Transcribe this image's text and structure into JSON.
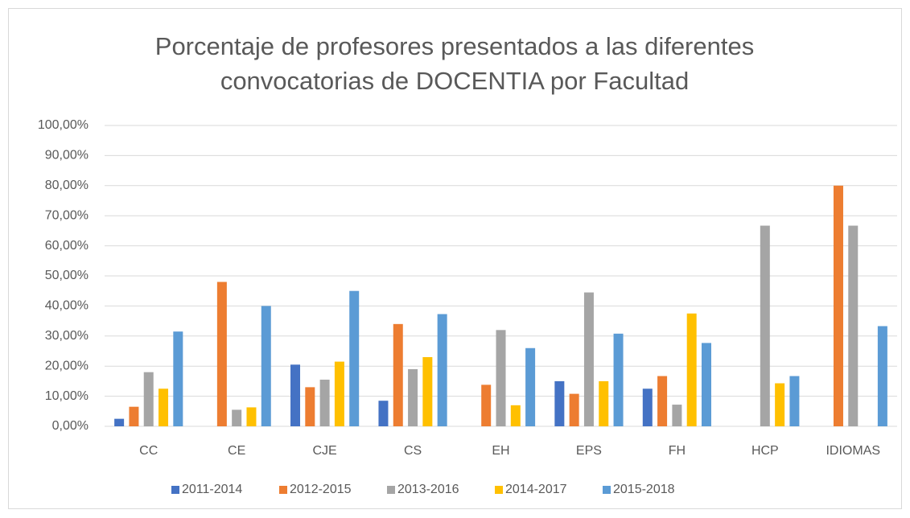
{
  "chart_data": {
    "type": "bar",
    "title": [
      "Porcentaje de profesores presentados a las diferentes",
      "convocatorias de DOCENTIA por Facultad"
    ],
    "categories": [
      "CC",
      "CE",
      "CJE",
      "CS",
      "EH",
      "EPS",
      "FH",
      "HCP",
      "IDIOMAS"
    ],
    "series": [
      {
        "name": "2011-2014",
        "color": "#4472c4",
        "values": [
          2.5,
          null,
          20.5,
          8.5,
          null,
          15,
          12.5,
          null,
          null
        ]
      },
      {
        "name": "2012-2015",
        "color": "#ed7d31",
        "values": [
          6.5,
          48,
          13,
          34,
          13.8,
          10.8,
          16.7,
          null,
          80
        ]
      },
      {
        "name": "2013-2016",
        "color": "#a5a5a5",
        "values": [
          18,
          5.5,
          15.5,
          19,
          32,
          44.5,
          7.2,
          66.7,
          66.7
        ]
      },
      {
        "name": "2014-2017",
        "color": "#ffc000",
        "values": [
          12.5,
          6.3,
          21.5,
          23,
          7,
          15,
          37.5,
          14.3,
          null
        ]
      },
      {
        "name": "2015-2018",
        "color": "#5b9bd5",
        "values": [
          31.5,
          40,
          45,
          37.3,
          26,
          30.8,
          27.7,
          16.7,
          33.3
        ]
      }
    ],
    "ylim": [
      0,
      100
    ],
    "yticks": [
      {
        "value": 0,
        "label": "0,00%"
      },
      {
        "value": 10,
        "label": "10,00%"
      },
      {
        "value": 20,
        "label": "20,00%"
      },
      {
        "value": 30,
        "label": "30,00%"
      },
      {
        "value": 40,
        "label": "40,00%"
      },
      {
        "value": 50,
        "label": "50,00%"
      },
      {
        "value": 60,
        "label": "60,00%"
      },
      {
        "value": 70,
        "label": "70,00%"
      },
      {
        "value": 80,
        "label": "80,00%"
      },
      {
        "value": 90,
        "label": "90,00%"
      },
      {
        "value": 100,
        "label": "100,00%"
      }
    ],
    "grid": true,
    "legend": "bottom"
  }
}
